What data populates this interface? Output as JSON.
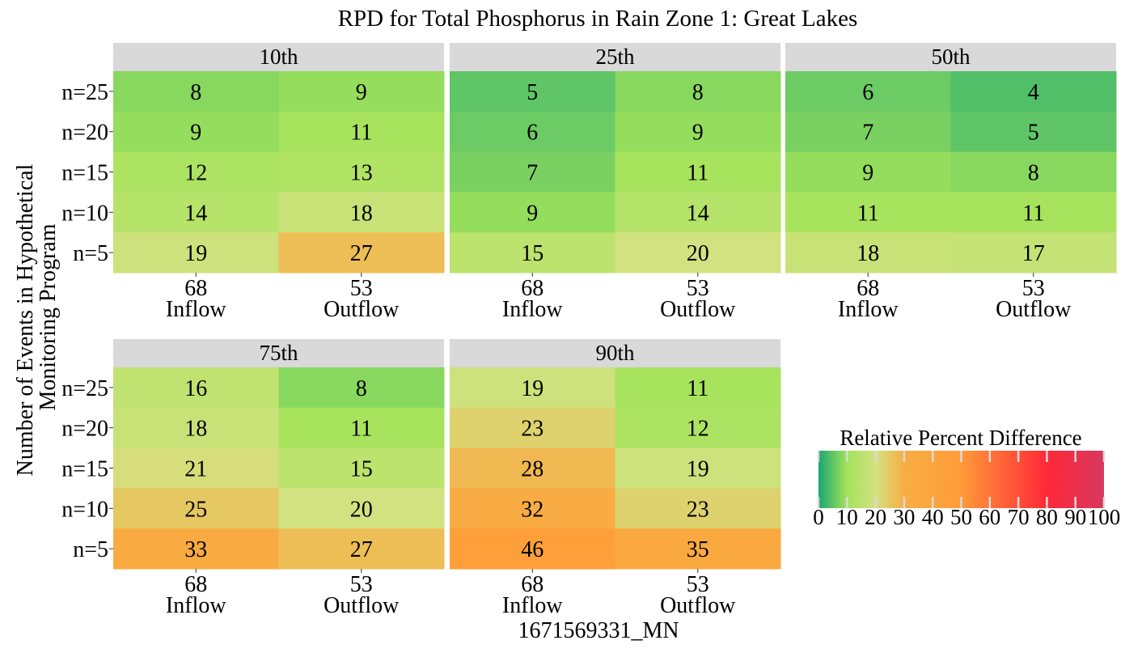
{
  "chart_data": {
    "type": "heatmap",
    "title": "RPD for Total Phosphorus in Rain Zone 1: Great Lakes",
    "xlabel": "1671569331_MN",
    "ylabel": [
      "Number of Events in Hypothetical",
      "Monitoring Program"
    ],
    "rows": [
      "n=25",
      "n=20",
      "n=15",
      "n=10",
      "n=5"
    ],
    "columns": [
      {
        "count": "68",
        "label": "Inflow"
      },
      {
        "count": "53",
        "label": "Outflow"
      }
    ],
    "panels": [
      {
        "name": "10th",
        "values": [
          [
            8,
            9
          ],
          [
            9,
            11
          ],
          [
            12,
            13
          ],
          [
            14,
            18
          ],
          [
            19,
            27
          ]
        ]
      },
      {
        "name": "25th",
        "values": [
          [
            5,
            8
          ],
          [
            6,
            9
          ],
          [
            7,
            11
          ],
          [
            9,
            14
          ],
          [
            15,
            20
          ]
        ]
      },
      {
        "name": "50th",
        "values": [
          [
            6,
            4
          ],
          [
            7,
            5
          ],
          [
            9,
            8
          ],
          [
            11,
            11
          ],
          [
            18,
            17
          ]
        ]
      },
      {
        "name": "75th",
        "values": [
          [
            16,
            8
          ],
          [
            18,
            11
          ],
          [
            21,
            15
          ],
          [
            25,
            20
          ],
          [
            33,
            27
          ]
        ]
      },
      {
        "name": "90th",
        "values": [
          [
            19,
            11
          ],
          [
            23,
            12
          ],
          [
            28,
            19
          ],
          [
            32,
            23
          ],
          [
            46,
            35
          ]
        ]
      }
    ],
    "legend": {
      "title": "Relative Percent Difference",
      "range": [
        0,
        100
      ],
      "ticks": [
        "0",
        "10",
        "20",
        "30",
        "40",
        "50",
        "60",
        "70",
        "80",
        "90",
        "100"
      ],
      "placement": "right"
    },
    "color_scale": [
      {
        "v": 0,
        "c": "#1aa772"
      },
      {
        "v": 10,
        "c": "#a3e35a"
      },
      {
        "v": 20,
        "c": "#d2e280"
      },
      {
        "v": 30,
        "c": "#f8ae44"
      },
      {
        "v": 50,
        "c": "#ff9b38"
      },
      {
        "v": 80,
        "c": "#ff2838"
      },
      {
        "v": 100,
        "c": "#d7385e"
      }
    ],
    "colors": {
      "strip_background": "#d9d9d9",
      "page_background": "#ffffff"
    }
  }
}
